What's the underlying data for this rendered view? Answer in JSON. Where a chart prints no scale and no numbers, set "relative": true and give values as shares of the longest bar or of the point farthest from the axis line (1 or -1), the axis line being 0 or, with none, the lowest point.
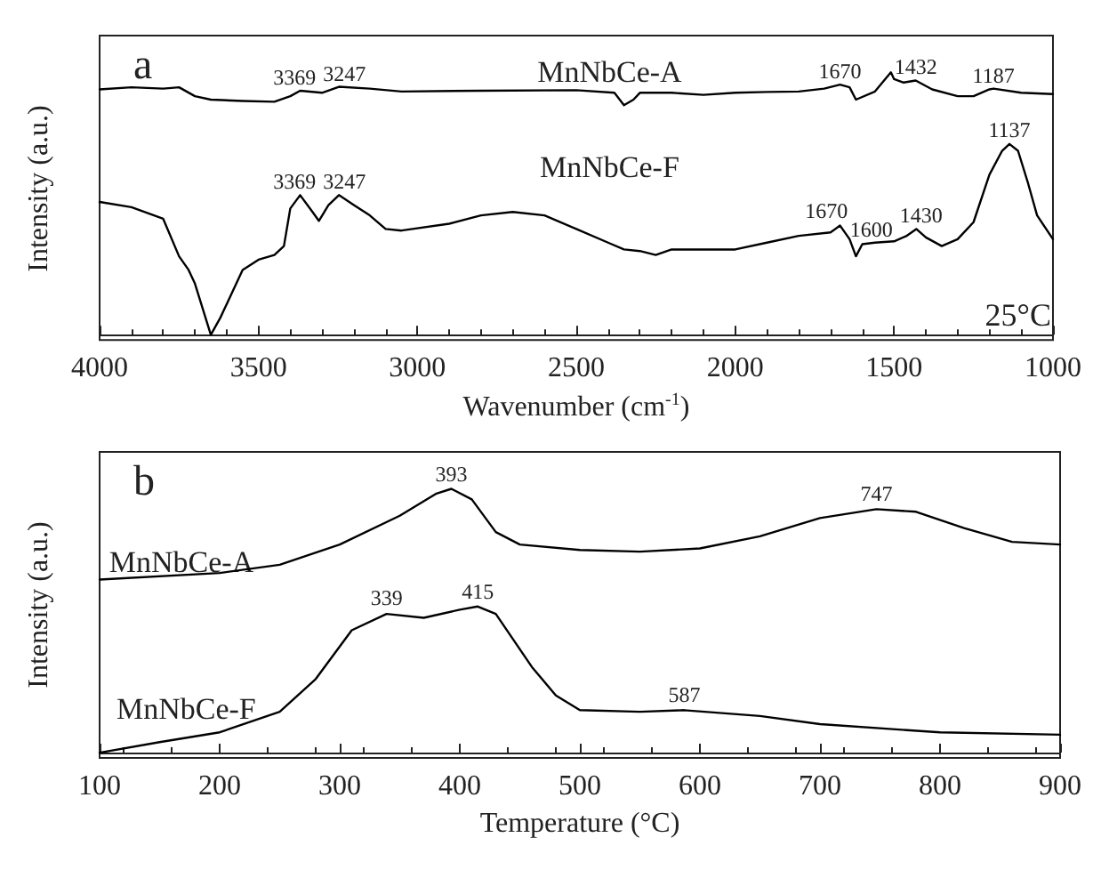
{
  "chart_data": [
    {
      "type": "line",
      "title": "a",
      "xlabel": "Wavenumber (cm$^{-1}$)",
      "ylabel": "Intensity (a.u.)",
      "relative": true,
      "xlim": [
        4000,
        1000
      ],
      "xticks": [
        4000,
        3500,
        3000,
        2500,
        2000,
        1500,
        1000
      ],
      "grid": false,
      "legend": false,
      "marker": "none",
      "line_style": "solid",
      "x": [
        4000,
        3900,
        3800,
        3750,
        3700,
        3650,
        3550,
        3450,
        3400,
        3369,
        3300,
        3247,
        3150,
        3050,
        2800,
        2500,
        2380,
        2350,
        2320,
        2300,
        2200,
        2100,
        2000,
        1900,
        1800,
        1720,
        1670,
        1640,
        1620,
        1560,
        1510,
        1500,
        1470,
        1432,
        1380,
        1300,
        1250,
        1200,
        1187,
        1100,
        1000
      ],
      "series": [
        {
          "name": "MnNbCe-A",
          "color": "#000000",
          "values": [
            0.935,
            0.943,
            0.938,
            0.943,
            0.909,
            0.896,
            0.891,
            0.888,
            0.909,
            0.93,
            0.922,
            0.945,
            0.938,
            0.927,
            0.93,
            0.932,
            0.922,
            0.875,
            0.896,
            0.922,
            0.922,
            0.914,
            0.922,
            0.925,
            0.927,
            0.938,
            0.953,
            0.943,
            0.896,
            0.927,
            1.0,
            0.974,
            0.961,
            0.969,
            0.935,
            0.909,
            0.909,
            0.935,
            0.938,
            0.922,
            0.917
          ]
        },
        {
          "name": "MnNbCe-F",
          "color": "#000000",
          "x": [
            4000,
            3900,
            3800,
            3750,
            3720,
            3700,
            3680,
            3650,
            3620,
            3580,
            3550,
            3500,
            3450,
            3420,
            3400,
            3369,
            3330,
            3310,
            3280,
            3247,
            3200,
            3150,
            3100,
            3050,
            2900,
            2800,
            2700,
            2600,
            2500,
            2400,
            2350,
            2300,
            2250,
            2200,
            2000,
            1900,
            1800,
            1700,
            1670,
            1640,
            1620,
            1600,
            1560,
            1500,
            1460,
            1430,
            1400,
            1350,
            1300,
            1250,
            1200,
            1160,
            1137,
            1110,
            1080,
            1050,
            1000
          ],
          "values": [
            0.506,
            0.486,
            0.442,
            0.299,
            0.247,
            0.195,
            0.117,
            0,
            0.065,
            0.169,
            0.247,
            0.286,
            0.304,
            0.338,
            0.481,
            0.532,
            0.468,
            0.434,
            0.494,
            0.532,
            0.494,
            0.455,
            0.403,
            0.397,
            0.423,
            0.455,
            0.468,
            0.455,
            0.403,
            0.351,
            0.325,
            0.319,
            0.304,
            0.325,
            0.325,
            0.351,
            0.377,
            0.39,
            0.416,
            0.364,
            0.299,
            0.345,
            0.351,
            0.356,
            0.377,
            0.403,
            0.371,
            0.338,
            0.364,
            0.429,
            0.61,
            0.701,
            0.727,
            0.701,
            0.584,
            0.455,
            0.364
          ]
        }
      ],
      "annotations": [
        {
          "text": "3369",
          "x": 3369,
          "y": 0.94
        },
        {
          "text": "3247",
          "x": 3247,
          "y": 0.955
        },
        {
          "text": "1670",
          "x": 1670,
          "y": 0.963
        },
        {
          "text": "1432",
          "x": 1432,
          "y": 0.979
        },
        {
          "text": "1187",
          "x": 1187,
          "y": 0.948
        },
        {
          "text": "3369",
          "x": 3369,
          "y": 0.545
        },
        {
          "text": "3247",
          "x": 3247,
          "y": 0.545
        },
        {
          "text": "1670",
          "x": 1670,
          "y": 0.43
        },
        {
          "text": "1600",
          "x": 1600,
          "y": 0.36
        },
        {
          "text": "1430",
          "x": 1430,
          "y": 0.415
        },
        {
          "text": "1137",
          "x": 1137,
          "y": 0.74
        },
        "25°C"
      ]
    },
    {
      "type": "line",
      "title": "b",
      "xlabel": "Temperature (°C)",
      "ylabel": "Intensity (a.u.)",
      "relative": true,
      "xlim": [
        100,
        900
      ],
      "xticks": [
        100,
        200,
        300,
        400,
        500,
        600,
        700,
        800,
        900
      ],
      "grid": false,
      "legend": false,
      "marker": "none",
      "line_style": "solid",
      "x": [
        100,
        200,
        250,
        300,
        350,
        380,
        393,
        410,
        430,
        450,
        500,
        550,
        600,
        650,
        700,
        747,
        780,
        820,
        860,
        900
      ],
      "series": [
        {
          "name": "MnNbCe-A",
          "color": "#000000",
          "values": [
            0.656,
            0.681,
            0.712,
            0.789,
            0.898,
            0.981,
            1.0,
            0.96,
            0.836,
            0.789,
            0.768,
            0.762,
            0.774,
            0.82,
            0.889,
            0.923,
            0.913,
            0.851,
            0.799,
            0.789
          ]
        },
        {
          "name": "MnNbCe-F",
          "color": "#000000",
          "x": [
            100,
            150,
            200,
            250,
            280,
            310,
            339,
            370,
            400,
            415,
            430,
            460,
            480,
            500,
            550,
            587,
            650,
            700,
            800,
            900
          ],
          "values": [
            0,
            0.04,
            0.077,
            0.155,
            0.279,
            0.464,
            0.526,
            0.511,
            0.542,
            0.554,
            0.526,
            0.325,
            0.217,
            0.161,
            0.155,
            0.161,
            0.139,
            0.108,
            0.077,
            0.068
          ]
        }
      ],
      "annotations": [
        {
          "text": "393",
          "x": 393,
          "y": 1.015
        },
        {
          "text": "747",
          "x": 747,
          "y": 0.94
        },
        {
          "text": "339",
          "x": 339,
          "y": 0.545
        },
        {
          "text": "415",
          "x": 415,
          "y": 0.57
        },
        {
          "text": "587",
          "x": 587,
          "y": 0.18
        }
      ]
    }
  ]
}
